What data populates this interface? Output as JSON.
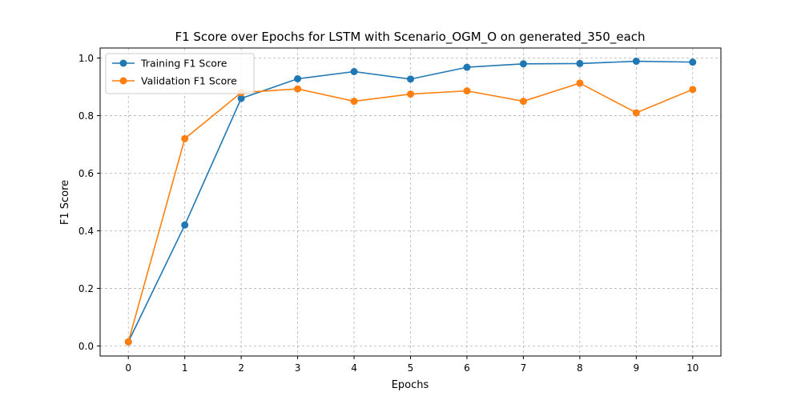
{
  "chart_data": {
    "type": "line",
    "title": "F1 Score over Epochs for LSTM with Scenario_OGM_O on generated_350_each",
    "xlabel": "Epochs",
    "ylabel": "F1 Score",
    "x": [
      0,
      1,
      2,
      3,
      4,
      5,
      6,
      7,
      8,
      9,
      10
    ],
    "x_ticks": [
      "0",
      "1",
      "2",
      "3",
      "4",
      "5",
      "6",
      "7",
      "8",
      "9",
      "10"
    ],
    "y_ticks": [
      "0.0",
      "0.2",
      "0.4",
      "0.6",
      "0.8",
      "1.0"
    ],
    "xlim": [
      -0.5,
      10.5
    ],
    "ylim": [
      -0.035,
      1.035
    ],
    "grid": true,
    "legend_position": "top-left",
    "series": [
      {
        "name": "Training F1 Score",
        "color": "#1f77b4",
        "values": [
          0.014,
          0.42,
          0.86,
          0.928,
          0.953,
          0.927,
          0.968,
          0.98,
          0.981,
          0.989,
          0.986
        ]
      },
      {
        "name": "Validation F1 Score",
        "color": "#ff7f0e",
        "values": [
          0.014,
          0.72,
          0.88,
          0.893,
          0.85,
          0.875,
          0.886,
          0.85,
          0.913,
          0.81,
          0.891
        ]
      }
    ]
  }
}
